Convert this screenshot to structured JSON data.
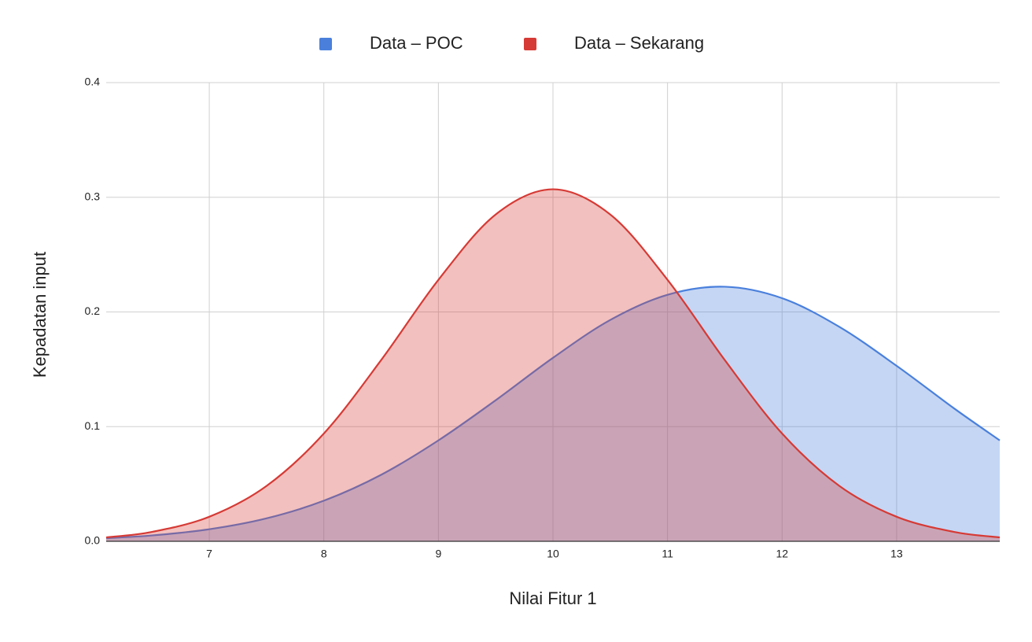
{
  "chart_data": {
    "type": "area",
    "x_label": "Nilai Fitur 1",
    "y_label": "Kepadatan input",
    "x": [
      6.1,
      6.5,
      7,
      7.5,
      8,
      8.5,
      9,
      9.5,
      10,
      10.5,
      11,
      11.5,
      12,
      12.5,
      13,
      13.5,
      13.9
    ],
    "series": [
      {
        "name": "Data – POC",
        "color": "#4a80dc",
        "values": [
          0.0027,
          0.0051,
          0.0105,
          0.02,
          0.0354,
          0.058,
          0.088,
          0.123,
          0.16,
          0.193,
          0.215,
          0.222,
          0.212,
          0.187,
          0.153,
          0.116,
          0.088
        ]
      },
      {
        "name": "Data – Sekarang",
        "color": "#d63a35",
        "values": [
          0.0034,
          0.0082,
          0.0214,
          0.0483,
          0.094,
          0.158,
          0.228,
          0.285,
          0.307,
          0.285,
          0.228,
          0.158,
          0.094,
          0.0483,
          0.0214,
          0.0082,
          0.0034
        ]
      }
    ],
    "xlim": [
      6.1,
      13.9
    ],
    "ylim": [
      0,
      0.4
    ],
    "xticks": [
      7,
      8,
      9,
      10,
      11,
      12,
      13
    ],
    "yticks": [
      {
        "value": 0,
        "label": "0.0"
      },
      0.1,
      0.2,
      0.3,
      0.4
    ],
    "grid": true,
    "legend": "top"
  }
}
